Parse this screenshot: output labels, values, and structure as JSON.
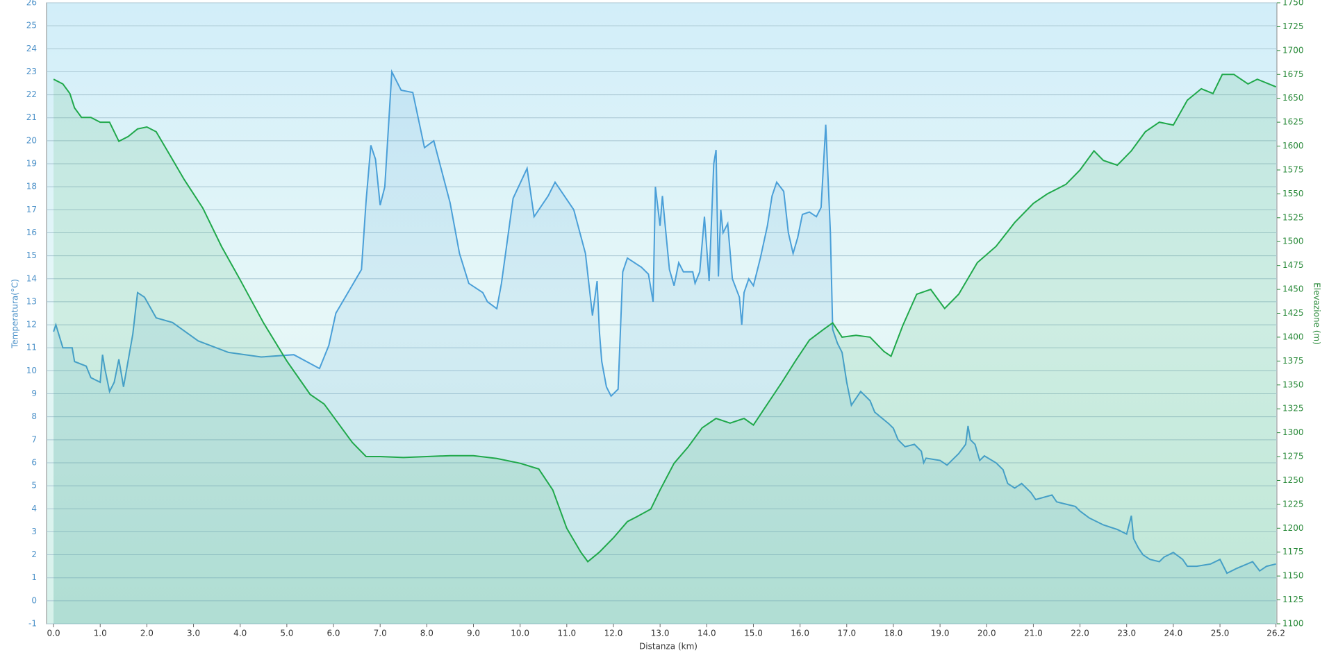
{
  "chart_data": {
    "type": "line",
    "x_label": "Distanza  (km)",
    "y_label": "Temperatura(°C)",
    "y2_label": "Elevazione (m)",
    "xlim": [
      -0.15,
      26.22
    ],
    "xticks": [
      {
        "value": 0,
        "label": "0.0"
      },
      {
        "value": 1,
        "label": "1.0"
      },
      {
        "value": 2,
        "label": "2.0"
      },
      {
        "value": 3,
        "label": "3.0"
      },
      {
        "value": 4,
        "label": "4.0"
      },
      {
        "value": 5,
        "label": "5.0"
      },
      {
        "value": 6,
        "label": "6.0"
      },
      {
        "value": 7,
        "label": "7.0"
      },
      {
        "value": 8,
        "label": "8.0"
      },
      {
        "value": 9,
        "label": "9.0"
      },
      {
        "value": 10,
        "label": "10.0"
      },
      {
        "value": 11,
        "label": "11.0"
      },
      {
        "value": 12,
        "label": "12.0"
      },
      {
        "value": 13,
        "label": "13.0"
      },
      {
        "value": 14,
        "label": "14.0"
      },
      {
        "value": 15,
        "label": "15.0"
      },
      {
        "value": 16,
        "label": "16.0"
      },
      {
        "value": 17,
        "label": "17.0"
      },
      {
        "value": 18,
        "label": "18.0"
      },
      {
        "value": 19,
        "label": "19.0"
      },
      {
        "value": 20,
        "label": "20.0"
      },
      {
        "value": 21,
        "label": "21.0"
      },
      {
        "value": 22,
        "label": "22.0"
      },
      {
        "value": 23,
        "label": "23.0"
      },
      {
        "value": 24,
        "label": "24.0"
      },
      {
        "value": 25,
        "label": "25.0"
      },
      {
        "value": 26.2,
        "label": "26.2"
      }
    ],
    "ylim": [
      -1,
      26
    ],
    "yticks": [
      -1,
      0,
      1,
      2,
      3,
      4,
      5,
      6,
      7,
      8,
      9,
      10,
      11,
      12,
      13,
      14,
      15,
      16,
      17,
      18,
      19,
      20,
      21,
      22,
      23,
      24,
      25,
      26
    ],
    "y2lim": [
      1100,
      1750
    ],
    "y2ticks": [
      1100,
      1125,
      1150,
      1175,
      1200,
      1225,
      1250,
      1275,
      1300,
      1325,
      1350,
      1375,
      1400,
      1425,
      1450,
      1475,
      1500,
      1525,
      1550,
      1575,
      1600,
      1625,
      1650,
      1675,
      1700,
      1725,
      1750
    ],
    "grid": true,
    "series": [
      {
        "name": "Temperatura",
        "color": "#4a9fd8",
        "axis": "y",
        "x": [
          0,
          0.05,
          0.2,
          0.4,
          0.45,
          0.7,
          0.8,
          1.0,
          1.05,
          1.1,
          1.2,
          1.3,
          1.4,
          1.5,
          1.7,
          1.8,
          1.95,
          2.2,
          2.55,
          3.1,
          3.75,
          4.45,
          5.15,
          5.7,
          5.9,
          6.05,
          6.6,
          6.7,
          6.8,
          6.9,
          7.0,
          7.1,
          7.25,
          7.45,
          7.7,
          7.95,
          8.15,
          8.5,
          8.7,
          8.9,
          9.2,
          9.3,
          9.5,
          9.6,
          9.85,
          10.15,
          10.3,
          10.6,
          10.75,
          11.15,
          11.4,
          11.55,
          11.65,
          11.7,
          11.75,
          11.85,
          11.95,
          12.1,
          12.2,
          12.3,
          12.6,
          12.75,
          12.85,
          12.9,
          13.0,
          13.05,
          13.1,
          13.2,
          13.3,
          13.4,
          13.5,
          13.7,
          13.75,
          13.85,
          13.95,
          14.05,
          14.15,
          14.2,
          14.25,
          14.3,
          14.35,
          14.45,
          14.55,
          14.7,
          14.75,
          14.8,
          14.9,
          15.0,
          15.15,
          15.3,
          15.4,
          15.5,
          15.65,
          15.75,
          15.85,
          15.95,
          16.05,
          16.2,
          16.35,
          16.45,
          16.55,
          16.65,
          16.7,
          16.8,
          16.9,
          17.0,
          17.1,
          17.2,
          17.3,
          17.5,
          17.6,
          17.9,
          18.0,
          18.1,
          18.25,
          18.45,
          18.6,
          18.65,
          18.7,
          19.0,
          19.15,
          19.3,
          19.4,
          19.55,
          19.6,
          19.65,
          19.75,
          19.85,
          19.95,
          20.2,
          20.35,
          20.45,
          20.6,
          20.75,
          20.95,
          21.05,
          21.4,
          21.5,
          21.9,
          22.0,
          22.2,
          22.5,
          22.8,
          23.0,
          23.1,
          23.15,
          23.25,
          23.35,
          23.5,
          23.7,
          23.8,
          24.0,
          24.2,
          24.3,
          24.5,
          24.8,
          25.0,
          25.15,
          25.35,
          25.7,
          25.85,
          26.0,
          26.2
        ],
        "values": [
          11.7,
          12.0,
          11.0,
          11.0,
          10.4,
          10.2,
          9.7,
          9.5,
          10.7,
          10.1,
          9.1,
          9.5,
          10.5,
          9.3,
          11.6,
          13.4,
          13.2,
          12.3,
          12.1,
          11.3,
          10.8,
          10.6,
          10.7,
          10.1,
          11.1,
          12.5,
          14.4,
          17.4,
          19.8,
          19.2,
          17.2,
          18.0,
          23.0,
          22.2,
          22.1,
          19.7,
          20.0,
          17.3,
          15.1,
          13.8,
          13.4,
          13.0,
          12.7,
          13.8,
          17.5,
          18.8,
          16.7,
          17.6,
          18.2,
          17.0,
          15.1,
          12.4,
          13.9,
          11.7,
          10.4,
          9.3,
          8.9,
          9.2,
          14.3,
          14.9,
          14.5,
          14.2,
          13.0,
          18.0,
          16.3,
          17.6,
          16.5,
          14.4,
          13.7,
          14.7,
          14.3,
          14.3,
          13.8,
          14.3,
          16.7,
          13.9,
          19.0,
          19.6,
          14.1,
          17.0,
          16.0,
          16.4,
          14.0,
          13.2,
          12.0,
          13.4,
          14.0,
          13.7,
          14.9,
          16.3,
          17.6,
          18.2,
          17.8,
          16.0,
          15.1,
          15.8,
          16.8,
          16.9,
          16.7,
          17.1,
          20.7,
          16.0,
          11.8,
          11.2,
          10.8,
          9.5,
          8.5,
          8.8,
          9.1,
          8.7,
          8.2,
          7.7,
          7.5,
          7.0,
          6.7,
          6.8,
          6.5,
          6.0,
          6.2,
          6.1,
          5.9,
          6.2,
          6.4,
          6.8,
          7.6,
          7.0,
          6.8,
          6.1,
          6.3,
          6.0,
          5.7,
          5.1,
          4.9,
          5.1,
          4.7,
          4.4,
          4.6,
          4.3,
          4.1,
          3.9,
          3.6,
          3.3,
          3.1,
          2.9,
          3.7,
          2.7,
          2.3,
          2.0,
          1.8,
          1.7,
          1.9,
          2.1,
          1.8,
          1.5,
          1.5,
          1.6,
          1.8,
          1.2,
          1.4,
          1.7,
          1.3,
          1.5,
          1.6
        ]
      },
      {
        "name": "Elevazione",
        "color": "#1fa84a",
        "axis": "y2",
        "x": [
          0,
          0.2,
          0.35,
          0.45,
          0.6,
          0.8,
          1.0,
          1.2,
          1.4,
          1.6,
          1.8,
          2.0,
          2.2,
          2.5,
          2.8,
          3.2,
          3.6,
          4.0,
          4.5,
          5.0,
          5.5,
          5.8,
          6.1,
          6.4,
          6.7,
          7.0,
          7.5,
          8.0,
          8.5,
          9.0,
          9.5,
          10.0,
          10.4,
          10.7,
          11.0,
          11.3,
          11.45,
          11.7,
          12.0,
          12.3,
          12.5,
          12.8,
          13.0,
          13.3,
          13.6,
          13.9,
          14.2,
          14.5,
          14.8,
          15.0,
          15.3,
          15.6,
          15.9,
          16.2,
          16.5,
          16.7,
          16.9,
          17.2,
          17.5,
          17.8,
          17.95,
          18.2,
          18.5,
          18.8,
          19.1,
          19.4,
          19.8,
          20.2,
          20.6,
          21.0,
          21.3,
          21.7,
          22.0,
          22.3,
          22.5,
          22.8,
          23.1,
          23.4,
          23.7,
          24.0,
          24.3,
          24.6,
          24.85,
          25.05,
          25.3,
          25.6,
          25.8,
          26.2
        ],
        "values": [
          1670,
          1665,
          1655,
          1640,
          1630,
          1630,
          1625,
          1625,
          1605,
          1610,
          1618,
          1620,
          1615,
          1590,
          1565,
          1535,
          1495,
          1460,
          1415,
          1375,
          1340,
          1330,
          1310,
          1290,
          1275,
          1275,
          1274,
          1275,
          1276,
          1276,
          1273,
          1268,
          1262,
          1240,
          1200,
          1175,
          1165,
          1175,
          1190,
          1207,
          1212,
          1220,
          1240,
          1268,
          1285,
          1305,
          1315,
          1310,
          1315,
          1308,
          1330,
          1352,
          1375,
          1397,
          1408,
          1415,
          1400,
          1402,
          1400,
          1385,
          1380,
          1412,
          1445,
          1450,
          1430,
          1445,
          1478,
          1495,
          1520,
          1540,
          1550,
          1560,
          1575,
          1595,
          1585,
          1580,
          1595,
          1615,
          1625,
          1622,
          1648,
          1660,
          1655,
          1675,
          1675,
          1665,
          1670,
          1662
        ]
      }
    ]
  }
}
